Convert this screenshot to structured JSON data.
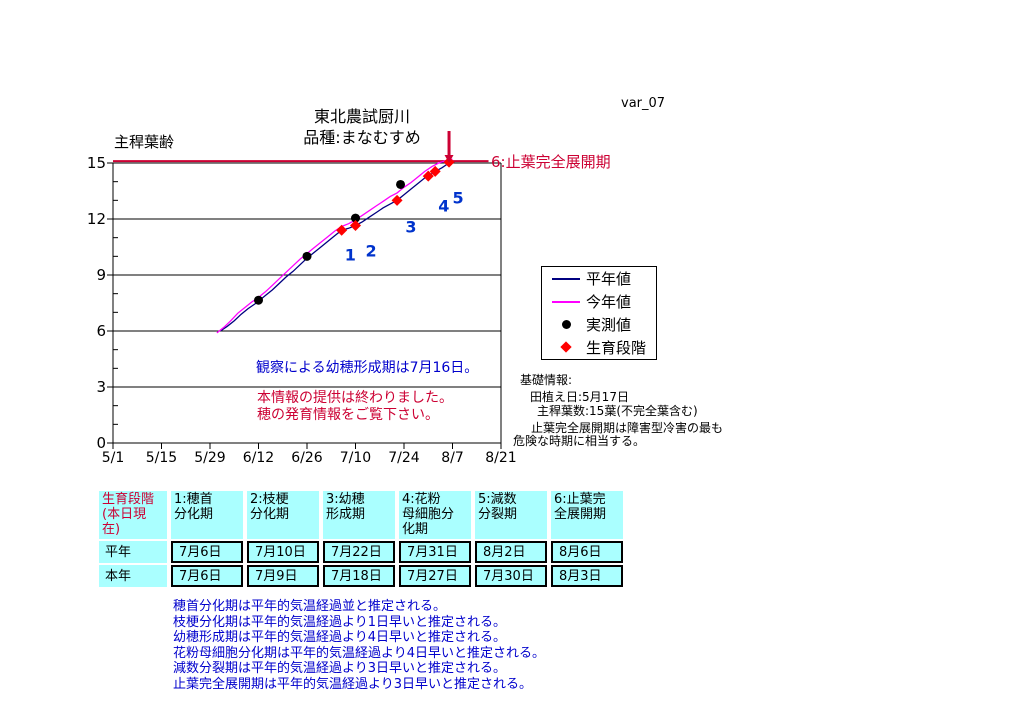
{
  "var_label": "var_07",
  "title": {
    "station": "東北農試厨川",
    "variety": "品種:まなむすめ"
  },
  "chart_data": {
    "type": "line",
    "title": "東北農試厨川 品種:まなむすめ",
    "xlabel": "",
    "ylabel": "主稈葉齢",
    "ylim": [
      0,
      15
    ],
    "y_ticks": [
      0,
      3,
      6,
      9,
      12,
      15
    ],
    "y_minor_step": 1,
    "x_tick_labels": [
      "5/1",
      "5/15",
      "5/29",
      "6/12",
      "6/26",
      "7/10",
      "7/24",
      "8/7",
      "8/21"
    ],
    "x_tick_days": [
      0,
      14,
      28,
      42,
      56,
      70,
      84,
      98,
      112
    ],
    "xlim_days": [
      0,
      112
    ],
    "grid": "horizontal",
    "legend_position": "right",
    "series": [
      {
        "name": "平年値",
        "color": "#000080",
        "points": [
          [
            31,
            6.0
          ],
          [
            33,
            6.25
          ],
          [
            35,
            6.55
          ],
          [
            37,
            6.9
          ],
          [
            39,
            7.2
          ],
          [
            41,
            7.45
          ],
          [
            42,
            7.6
          ],
          [
            44,
            7.9
          ],
          [
            46,
            8.2
          ],
          [
            48,
            8.55
          ],
          [
            50,
            8.9
          ],
          [
            52,
            9.2
          ],
          [
            54,
            9.55
          ],
          [
            56,
            9.9
          ],
          [
            58,
            10.2
          ],
          [
            60,
            10.5
          ],
          [
            62,
            10.8
          ],
          [
            64,
            11.1
          ],
          [
            66,
            11.4
          ],
          [
            68,
            11.5
          ],
          [
            70,
            11.65
          ],
          [
            72,
            11.85
          ],
          [
            74,
            12.1
          ],
          [
            76,
            12.35
          ],
          [
            78,
            12.6
          ],
          [
            80,
            12.8
          ],
          [
            82,
            13.0
          ],
          [
            84,
            13.3
          ],
          [
            86,
            13.6
          ],
          [
            88,
            13.9
          ],
          [
            90,
            14.2
          ],
          [
            91,
            14.3
          ],
          [
            93,
            14.55
          ],
          [
            95,
            14.75
          ],
          [
            97,
            15.0
          ]
        ]
      },
      {
        "name": "今年値",
        "color": "#FF00FF",
        "points": [
          [
            30,
            5.9
          ],
          [
            32,
            6.2
          ],
          [
            34,
            6.55
          ],
          [
            36,
            6.95
          ],
          [
            38,
            7.25
          ],
          [
            40,
            7.55
          ],
          [
            42,
            7.8
          ],
          [
            44,
            8.1
          ],
          [
            46,
            8.45
          ],
          [
            48,
            8.8
          ],
          [
            50,
            9.15
          ],
          [
            52,
            9.5
          ],
          [
            54,
            9.85
          ],
          [
            56,
            10.15
          ],
          [
            58,
            10.45
          ],
          [
            60,
            10.75
          ],
          [
            62,
            11.05
          ],
          [
            64,
            11.35
          ],
          [
            66,
            11.6
          ],
          [
            68,
            11.75
          ],
          [
            70,
            11.95
          ],
          [
            72,
            12.2
          ],
          [
            74,
            12.45
          ],
          [
            76,
            12.7
          ],
          [
            78,
            12.95
          ],
          [
            80,
            13.2
          ],
          [
            82,
            13.4
          ],
          [
            84,
            13.7
          ],
          [
            86,
            13.95
          ],
          [
            88,
            14.25
          ],
          [
            90,
            14.55
          ],
          [
            92,
            14.8
          ],
          [
            94,
            15.0
          ],
          [
            96,
            15.12
          ],
          [
            98,
            15.2
          ]
        ]
      }
    ],
    "observed": {
      "name": "実測値",
      "color": "#000000",
      "points": [
        [
          42,
          7.65
        ],
        [
          56,
          10.0
        ],
        [
          70,
          12.05
        ],
        [
          83,
          13.85
        ]
      ]
    },
    "stages": {
      "name": "生育段階",
      "color": "#FF0000",
      "points": [
        [
          66,
          11.4
        ],
        [
          70,
          11.65
        ],
        [
          82,
          13.0
        ],
        [
          91,
          14.3
        ],
        [
          93,
          14.55
        ],
        [
          97,
          15.05
        ]
      ]
    },
    "stage_number_labels": [
      {
        "text": "1",
        "day": 68.5,
        "leaf": 10.05
      },
      {
        "text": "2",
        "day": 74.5,
        "leaf": 10.31
      },
      {
        "text": "3",
        "day": 86,
        "leaf": 11.57
      },
      {
        "text": "4",
        "day": 95.5,
        "leaf": 12.7
      },
      {
        "text": "5",
        "day": 99.6,
        "leaf": 13.1
      }
    ],
    "top_marker": {
      "label": "6:止葉完全展開期",
      "line_leaf": 15.1,
      "line_end_day": 108.4,
      "arrow_day": 97,
      "color": "#CC0033"
    }
  },
  "legend": {
    "items": [
      {
        "label": "平年値",
        "swatch": "line",
        "color": "#000080"
      },
      {
        "label": "今年値",
        "swatch": "line",
        "color": "#FF00FF"
      },
      {
        "label": "実測値",
        "swatch": "dot",
        "color": "#000000"
      },
      {
        "label": "生育段階",
        "swatch": "diamond",
        "color": "#FF0000"
      }
    ]
  },
  "annotations": {
    "observation_note": "観察による幼穂形成期は7月16日。",
    "notice_line1": "本情報の提供は終わりました。",
    "notice_line2": "穂の発育情報をご覧下さい。"
  },
  "basic_info": {
    "heading": "基礎情報:",
    "line1": "田植え日:5月17日",
    "line2": "主稈葉数:15葉(不完全葉含む)",
    "line3": "止葉完全展開期は障害型冷害の最も",
    "line4": "危険な時期に相当する。"
  },
  "table": {
    "corner": "生育段階\n(本日現在)",
    "headers": [
      "1:穂首\n分化期",
      "2:枝梗\n分化期",
      "3:幼穂\n形成期",
      "4:花粉\n母細胞分\n化期",
      "5:減数\n分裂期",
      "6:止葉完\n全展開期"
    ],
    "rows": [
      {
        "label": "平年",
        "cells": [
          "7月6日",
          "7月10日",
          "7月22日",
          "7月31日",
          "8月2日",
          "8月6日"
        ]
      },
      {
        "label": "本年",
        "cells": [
          "7月6日",
          "7月9日",
          "7月18日",
          "7月27日",
          "7月30日",
          "8月3日"
        ]
      }
    ]
  },
  "footnotes": [
    "穂首分化期は平年的気温経過並と推定される。",
    "枝梗分化期は平年的気温経過より1日早いと推定される。",
    "幼穂形成期は平年的気温経過より4日早いと推定される。",
    "花粉母細胞分化期は平年的気温経過より4日早いと推定される。",
    "減数分裂期は平年的気温経過より3日早いと推定される。",
    "止葉完全展開期は平年的気温経過より3日早いと推定される。"
  ],
  "colors": {
    "accent_red": "#CC0033",
    "blue_text": "#0000CC",
    "stage_number_blue": "#0033CC",
    "table_bg": "#AAFFFF",
    "normal_year": "#000080",
    "current_year": "#FF00FF",
    "stage_marker": "#FF0000",
    "observed_marker": "#000000"
  }
}
